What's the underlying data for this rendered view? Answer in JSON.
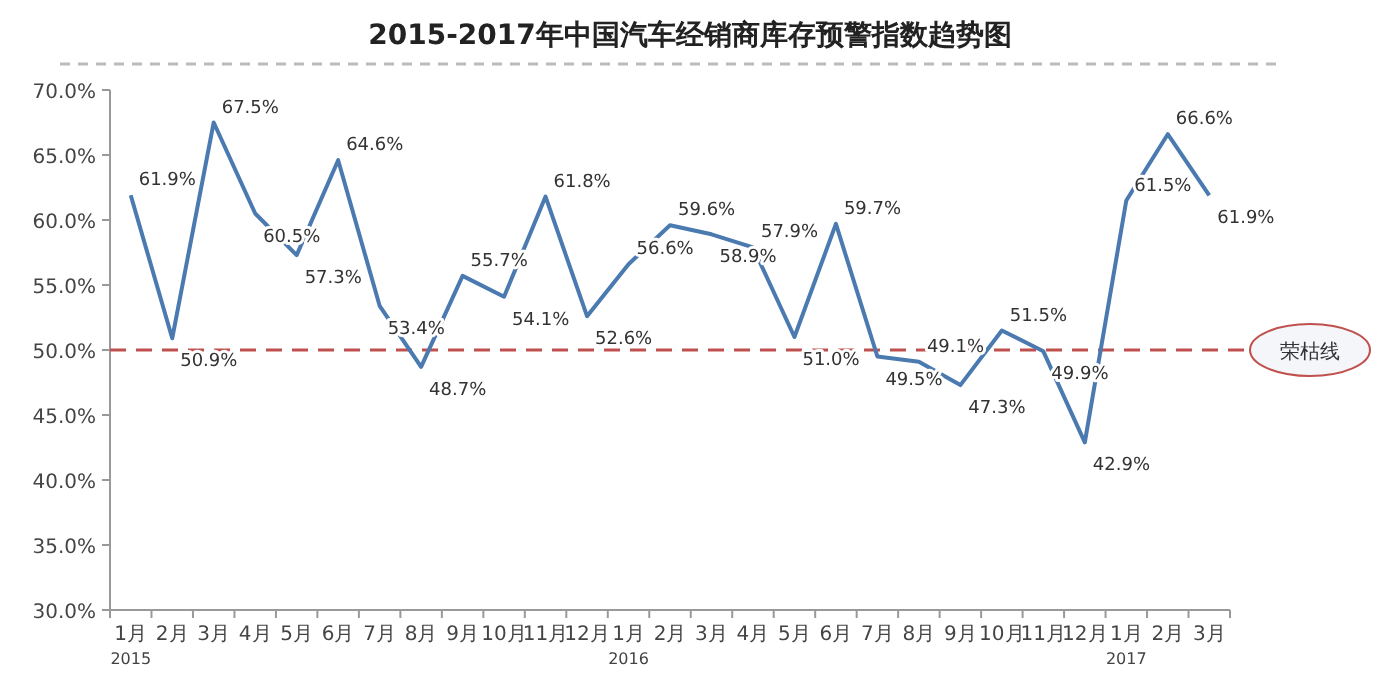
{
  "chart_data": {
    "type": "line",
    "title": "2015-2017年中国汽车经销商库存预警指数趋势图",
    "categories": [
      "1月\n2015",
      "2月",
      "3月",
      "4月",
      "5月",
      "6月",
      "7月",
      "8月",
      "9月",
      "10月",
      "11月",
      "12月",
      "1月\n2016",
      "2月",
      "3月",
      "4月",
      "5月",
      "6月",
      "7月",
      "8月",
      "9月",
      "10月",
      "11月",
      "12月",
      "1月\n2017",
      "2月",
      "3月"
    ],
    "series": [
      {
        "color": "#4a7ab0",
        "values": [
          61.9,
          50.9,
          67.5,
          60.5,
          57.3,
          64.6,
          53.4,
          48.7,
          55.7,
          54.1,
          61.8,
          52.6,
          56.6,
          59.6,
          58.9,
          57.9,
          51.0,
          59.7,
          49.5,
          49.1,
          47.3,
          51.5,
          49.9,
          42.9,
          61.5,
          66.6,
          61.9
        ],
        "value_labels": [
          "61.9%",
          "50.9%",
          "67.5%",
          "60.5%",
          "57.3%",
          "64.6%",
          "53.4%",
          "48.7%",
          "55.7%",
          "54.1%",
          "61.8%",
          "52.6%",
          "56.6%",
          "59.6%",
          "58.9%",
          "57.9%",
          "51.0%",
          "59.7%",
          "49.5%",
          "49.1%",
          "47.3%",
          "51.5%",
          "49.9%",
          "42.9%",
          "61.5%",
          "66.6%",
          "61.9%"
        ]
      }
    ],
    "ylim": [
      30,
      70
    ],
    "yticks": [
      {
        "value": 30,
        "label": "30.0%"
      },
      {
        "value": 35,
        "label": "35.0%"
      },
      {
        "value": 40,
        "label": "40.0%"
      },
      {
        "value": 45,
        "label": "45.0%"
      },
      {
        "value": 50,
        "label": "50.0%"
      },
      {
        "value": 55,
        "label": "55.0%"
      },
      {
        "value": 60,
        "label": "60.0%"
      },
      {
        "value": 65,
        "label": "65.0%"
      },
      {
        "value": 70,
        "label": "70.0%"
      }
    ],
    "ref_lines": [
      {
        "axis": "y",
        "value": 50,
        "label": "荣枯线",
        "color": "#c0504d",
        "line_style": "dashed"
      }
    ],
    "grid": false,
    "marker": "none",
    "line_style": "solid"
  }
}
